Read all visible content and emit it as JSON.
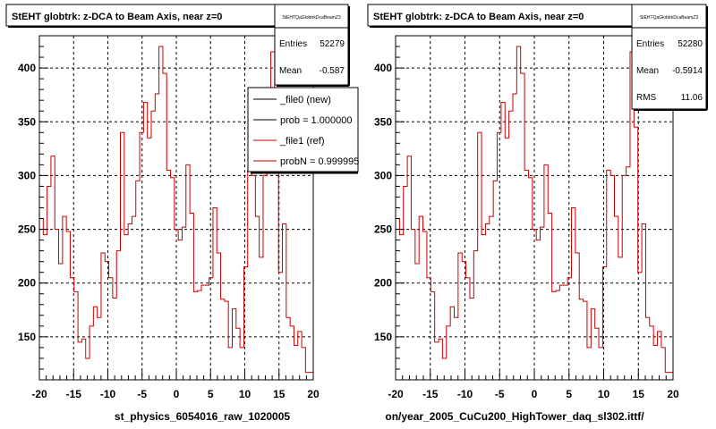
{
  "footer_text": "",
  "chart_data": [
    {
      "type": "line",
      "title": "StEHT globtrk: z-DCA to Beam Axis, near z=0",
      "xlabel": "st_physics_6054016_raw_1020005",
      "ylabel": "",
      "xlim": [
        -20,
        20
      ],
      "ylim": [
        110,
        430
      ],
      "grid": true,
      "x_ticks": [
        "-20",
        "-15",
        "-10",
        "-5",
        "0",
        "5",
        "10",
        "15",
        "20"
      ],
      "y_ticks": [
        "150",
        "200",
        "250",
        "300",
        "350",
        "400"
      ],
      "stats": {
        "name": "StEHTQaGlobtrkDcaBeamZ3",
        "entries_label": "Entries",
        "entries": "52279",
        "mean_label": "Mean",
        "mean": "-0.587"
      },
      "legend": {
        "placement": "top-right",
        "items": [
          {
            "label": "_file0 (new)",
            "color": "#000000"
          },
          {
            "label": "prob = 1.000000",
            "color": "#000000"
          },
          {
            "label": "_file1 (ref)",
            "color": "#cc0000"
          },
          {
            "label": "probN = 0.999995",
            "color": "#cc0000"
          }
        ]
      },
      "series": [
        {
          "color": "#cc0000",
          "bin_edges": [
            -20,
            20
          ],
          "values": [
            260,
            245,
            290,
            318,
            250,
            218,
            262,
            248,
            205,
            192,
            145,
            148,
            130,
            160,
            178,
            168,
            228,
            220,
            205,
            186,
            230,
            340,
            245,
            255,
            262,
            295,
            340,
            368,
            335,
            360,
            376,
            420,
            395,
            305,
            298,
            250,
            240,
            252,
            310,
            265,
            192,
            193,
            198,
            198,
            205,
            270,
            228,
            185,
            183,
            140,
            176,
            158,
            140,
            215,
            305,
            300,
            262,
            224,
            300,
            308,
            415,
            345,
            210,
            255,
            168,
            160,
            142,
            155,
            140,
            117,
            117
          ]
        }
      ]
    },
    {
      "type": "line",
      "title": "StEHT globtrk: z-DCA to Beam Axis, near z=0",
      "xlabel": "on/year_2005_CuCu200_HighTower_daq_sl302.ittf/",
      "ylabel": "",
      "xlim": [
        -20,
        20
      ],
      "ylim": [
        110,
        430
      ],
      "grid": true,
      "x_ticks": [
        "-20",
        "-15",
        "-10",
        "-5",
        "0",
        "5",
        "10",
        "15",
        "20"
      ],
      "y_ticks": [
        "150",
        "200",
        "250",
        "300",
        "350",
        "400"
      ],
      "stats": {
        "name": "StEHTQaGlobtrkDcaBeamZ3",
        "entries_label": "Entries",
        "entries": "52280",
        "mean_label": "Mean",
        "mean": "-0.5914",
        "rms_label": "RMS",
        "rms": "11.06"
      },
      "series": [
        {
          "color": "#cc0000",
          "bin_edges": [
            -20,
            20
          ],
          "values": [
            260,
            245,
            290,
            318,
            250,
            218,
            262,
            248,
            205,
            192,
            145,
            148,
            130,
            160,
            178,
            168,
            228,
            220,
            205,
            186,
            230,
            340,
            245,
            255,
            262,
            295,
            340,
            368,
            335,
            360,
            376,
            420,
            395,
            305,
            298,
            250,
            240,
            252,
            310,
            265,
            192,
            193,
            198,
            198,
            205,
            270,
            228,
            185,
            183,
            140,
            176,
            158,
            140,
            215,
            305,
            300,
            262,
            224,
            300,
            308,
            415,
            345,
            210,
            255,
            168,
            160,
            142,
            155,
            140,
            117,
            117
          ]
        }
      ]
    }
  ]
}
